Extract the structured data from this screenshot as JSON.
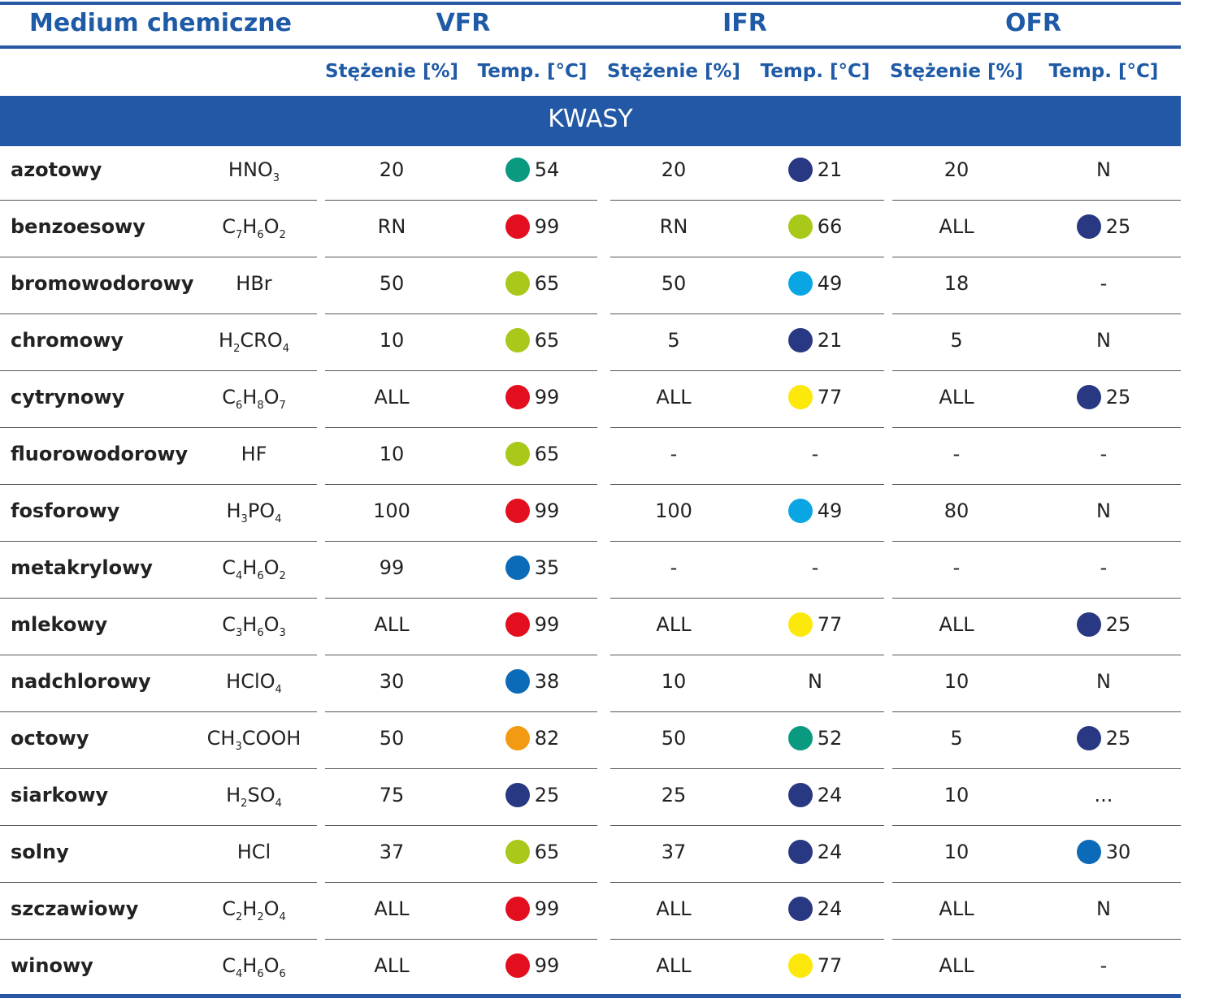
{
  "header": {
    "medium": "Medium chemiczne",
    "groups": [
      "VFR",
      "IFR",
      "OFR"
    ],
    "subheaders": [
      "Stężenie [%]",
      "Temp. [°C]",
      "Stężenie [%]",
      "Temp. [°C]",
      "Stężenie [%]",
      "Temp. [°C]"
    ]
  },
  "section_title": "KWASY",
  "colors": {
    "teal": "#0a9a80",
    "red": "#e30e1e",
    "lime": "#a8c81a",
    "navy": "#283882",
    "cyan": "#0aa6e4",
    "yellow": "#fde80b",
    "blue": "#0b6bb8",
    "orange": "#f39a13",
    "accent": "#1f5aa6"
  },
  "rows": [
    {
      "name": "azotowy",
      "formula": [
        [
          "HNO",
          ""
        ],
        [
          "",
          "3"
        ]
      ],
      "vfr_c": "20",
      "vfr_t": {
        "v": "54",
        "dot": "teal"
      },
      "ifr_c": "20",
      "ifr_t": {
        "v": "21",
        "dot": "navy"
      },
      "ofr_c": "20",
      "ofr_t": {
        "v": "N",
        "dot": ""
      }
    },
    {
      "name": "benzoesowy",
      "formula": [
        [
          "C",
          "7"
        ],
        [
          "H",
          "6"
        ],
        [
          "O",
          "2"
        ]
      ],
      "vfr_c": "RN",
      "vfr_t": {
        "v": "99",
        "dot": "red"
      },
      "ifr_c": "RN",
      "ifr_t": {
        "v": "66",
        "dot": "lime"
      },
      "ofr_c": "ALL",
      "ofr_t": {
        "v": "25",
        "dot": "navy"
      }
    },
    {
      "name": "bromowodorowy",
      "formula": [
        [
          "HBr",
          ""
        ]
      ],
      "vfr_c": "50",
      "vfr_t": {
        "v": "65",
        "dot": "lime"
      },
      "ifr_c": "50",
      "ifr_t": {
        "v": "49",
        "dot": "cyan"
      },
      "ofr_c": "18",
      "ofr_t": {
        "v": "-",
        "dot": ""
      }
    },
    {
      "name": "chromowy",
      "formula": [
        [
          "H",
          "2"
        ],
        [
          "CRO",
          "4"
        ]
      ],
      "vfr_c": "10",
      "vfr_t": {
        "v": "65",
        "dot": "lime"
      },
      "ifr_c": "5",
      "ifr_t": {
        "v": "21",
        "dot": "navy"
      },
      "ofr_c": "5",
      "ofr_t": {
        "v": "N",
        "dot": ""
      }
    },
    {
      "name": "cytrynowy",
      "formula": [
        [
          "C",
          "6"
        ],
        [
          "H",
          "8"
        ],
        [
          "O",
          "7"
        ]
      ],
      "vfr_c": "ALL",
      "vfr_t": {
        "v": "99",
        "dot": "red"
      },
      "ifr_c": "ALL",
      "ifr_t": {
        "v": "77",
        "dot": "yellow"
      },
      "ofr_c": "ALL",
      "ofr_t": {
        "v": "25",
        "dot": "navy"
      }
    },
    {
      "name": "fluorowodorowy",
      "formula": [
        [
          "HF",
          ""
        ]
      ],
      "vfr_c": "10",
      "vfr_t": {
        "v": "65",
        "dot": "lime"
      },
      "ifr_c": "-",
      "ifr_t": {
        "v": "-",
        "dot": ""
      },
      "ofr_c": "-",
      "ofr_t": {
        "v": "-",
        "dot": ""
      }
    },
    {
      "name": "fosforowy",
      "formula": [
        [
          "H",
          "3"
        ],
        [
          "PO",
          "4"
        ]
      ],
      "vfr_c": "100",
      "vfr_t": {
        "v": "99",
        "dot": "red"
      },
      "ifr_c": "100",
      "ifr_t": {
        "v": "49",
        "dot": "cyan"
      },
      "ofr_c": "80",
      "ofr_t": {
        "v": "N",
        "dot": ""
      }
    },
    {
      "name": "metakrylowy",
      "formula": [
        [
          "C",
          "4"
        ],
        [
          "H",
          "6"
        ],
        [
          "O",
          "2"
        ]
      ],
      "vfr_c": "99",
      "vfr_t": {
        "v": "35",
        "dot": "blue"
      },
      "ifr_c": "-",
      "ifr_t": {
        "v": "-",
        "dot": ""
      },
      "ofr_c": "-",
      "ofr_t": {
        "v": "-",
        "dot": ""
      }
    },
    {
      "name": "mlekowy",
      "formula": [
        [
          "C",
          "3"
        ],
        [
          "H",
          "6"
        ],
        [
          "O",
          "3"
        ]
      ],
      "vfr_c": "ALL",
      "vfr_t": {
        "v": "99",
        "dot": "red"
      },
      "ifr_c": "ALL",
      "ifr_t": {
        "v": "77",
        "dot": "yellow"
      },
      "ofr_c": "ALL",
      "ofr_t": {
        "v": "25",
        "dot": "navy"
      }
    },
    {
      "name": "nadchlorowy",
      "formula": [
        [
          "HClO",
          "4"
        ]
      ],
      "vfr_c": "30",
      "vfr_t": {
        "v": "38",
        "dot": "blue"
      },
      "ifr_c": "10",
      "ifr_t": {
        "v": "N",
        "dot": ""
      },
      "ofr_c": "10",
      "ofr_t": {
        "v": "N",
        "dot": ""
      }
    },
    {
      "name": "octowy",
      "formula": [
        [
          "CH",
          "3"
        ],
        [
          "COOH",
          ""
        ]
      ],
      "vfr_c": "50",
      "vfr_t": {
        "v": "82",
        "dot": "orange"
      },
      "ifr_c": "50",
      "ifr_t": {
        "v": "52",
        "dot": "teal"
      },
      "ofr_c": "5",
      "ofr_t": {
        "v": "25",
        "dot": "navy"
      }
    },
    {
      "name": "siarkowy",
      "formula": [
        [
          "H",
          "2"
        ],
        [
          "SO",
          "4"
        ]
      ],
      "vfr_c": "75",
      "vfr_t": {
        "v": "25",
        "dot": "navy"
      },
      "ifr_c": "25",
      "ifr_t": {
        "v": "24",
        "dot": "navy"
      },
      "ofr_c": "10",
      "ofr_t": {
        "v": "...",
        "dot": ""
      }
    },
    {
      "name": "solny",
      "formula": [
        [
          "HCl",
          ""
        ]
      ],
      "vfr_c": "37",
      "vfr_t": {
        "v": "65",
        "dot": "lime"
      },
      "ifr_c": "37",
      "ifr_t": {
        "v": "24",
        "dot": "navy"
      },
      "ofr_c": "10",
      "ofr_t": {
        "v": "30",
        "dot": "blue"
      }
    },
    {
      "name": "szczawiowy",
      "formula": [
        [
          "C",
          "2"
        ],
        [
          "H",
          "2"
        ],
        [
          "O",
          "4"
        ]
      ],
      "vfr_c": "ALL",
      "vfr_t": {
        "v": "99",
        "dot": "red"
      },
      "ifr_c": "ALL",
      "ifr_t": {
        "v": "24",
        "dot": "navy"
      },
      "ofr_c": "ALL",
      "ofr_t": {
        "v": "N",
        "dot": ""
      }
    },
    {
      "name": "winowy",
      "formula": [
        [
          "C",
          "4"
        ],
        [
          "H",
          "6"
        ],
        [
          "O",
          "6"
        ]
      ],
      "vfr_c": "ALL",
      "vfr_t": {
        "v": "99",
        "dot": "red"
      },
      "ifr_c": "ALL",
      "ifr_t": {
        "v": "77",
        "dot": "yellow"
      },
      "ofr_c": "ALL",
      "ofr_t": {
        "v": "-",
        "dot": ""
      }
    }
  ]
}
